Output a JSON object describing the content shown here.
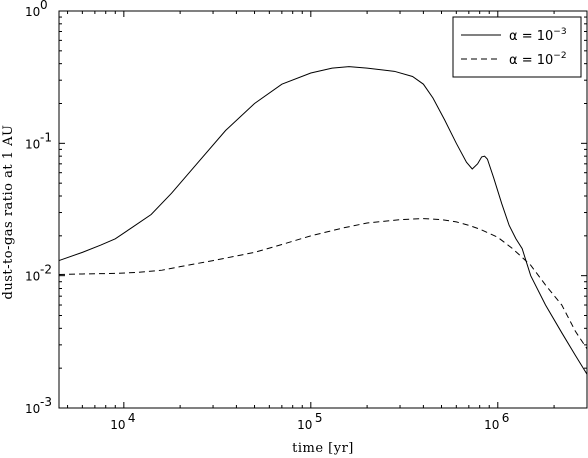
{
  "chart_data": {
    "type": "line",
    "title": "",
    "xlabel": "time [yr]",
    "ylabel": "dust-to-gas ratio at 1 AU",
    "xscale": "log",
    "yscale": "log",
    "xlim": [
      4500,
      3000000
    ],
    "ylim": [
      0.001,
      1
    ],
    "grid": false,
    "legend_position": "top-right",
    "x_ticks": [
      {
        "value": 10000,
        "base": "10",
        "exp": "4"
      },
      {
        "value": 100000,
        "base": "10",
        "exp": "5"
      },
      {
        "value": 1000000,
        "base": "10",
        "exp": "6"
      }
    ],
    "y_ticks": [
      {
        "value": 0.001,
        "base": "10",
        "exp": "-3"
      },
      {
        "value": 0.01,
        "base": "10",
        "exp": "-2"
      },
      {
        "value": 0.1,
        "base": "10",
        "exp": "-1"
      },
      {
        "value": 1,
        "base": "10",
        "exp": "0"
      }
    ],
    "series": [
      {
        "name": "α = 10⁻³",
        "legend_prefix": "α = 10",
        "legend_exp": "−3",
        "style": "solid",
        "color": "#000000",
        "points": [
          [
            4500,
            0.013
          ],
          [
            6000,
            0.015
          ],
          [
            7500,
            0.017
          ],
          [
            9000,
            0.019
          ],
          [
            11000,
            0.023
          ],
          [
            14000,
            0.029
          ],
          [
            18000,
            0.042
          ],
          [
            25000,
            0.072
          ],
          [
            35000,
            0.125
          ],
          [
            50000,
            0.2
          ],
          [
            70000,
            0.28
          ],
          [
            100000,
            0.34
          ],
          [
            130000,
            0.37
          ],
          [
            160000,
            0.38
          ],
          [
            200000,
            0.37
          ],
          [
            280000,
            0.35
          ],
          [
            350000,
            0.32
          ],
          [
            400000,
            0.28
          ],
          [
            450000,
            0.22
          ],
          [
            520000,
            0.15
          ],
          [
            600000,
            0.1
          ],
          [
            680000,
            0.072
          ],
          [
            730000,
            0.064
          ],
          [
            780000,
            0.07
          ],
          [
            820000,
            0.079
          ],
          [
            850000,
            0.08
          ],
          [
            880000,
            0.076
          ],
          [
            950000,
            0.055
          ],
          [
            1050000,
            0.035
          ],
          [
            1150000,
            0.024
          ],
          [
            1250000,
            0.019
          ],
          [
            1350000,
            0.016
          ],
          [
            1500000,
            0.01
          ],
          [
            1800000,
            0.006
          ],
          [
            2200000,
            0.0037
          ],
          [
            2600000,
            0.0025
          ],
          [
            3000000,
            0.0018
          ]
        ]
      },
      {
        "name": "α = 10⁻²",
        "legend_prefix": "α = 10",
        "legend_exp": "−2",
        "style": "dashed",
        "color": "#000000",
        "points": [
          [
            4500,
            0.0102
          ],
          [
            6000,
            0.0103
          ],
          [
            9000,
            0.0104
          ],
          [
            12000,
            0.0106
          ],
          [
            16000,
            0.011
          ],
          [
            20000,
            0.0117
          ],
          [
            30000,
            0.013
          ],
          [
            50000,
            0.015
          ],
          [
            70000,
            0.0172
          ],
          [
            100000,
            0.02
          ],
          [
            150000,
            0.023
          ],
          [
            200000,
            0.025
          ],
          [
            300000,
            0.0265
          ],
          [
            400000,
            0.027
          ],
          [
            500000,
            0.0265
          ],
          [
            600000,
            0.0255
          ],
          [
            700000,
            0.024
          ],
          [
            800000,
            0.0225
          ],
          [
            1000000,
            0.0195
          ],
          [
            1200000,
            0.016
          ],
          [
            1500000,
            0.012
          ],
          [
            1800000,
            0.0085
          ],
          [
            2200000,
            0.006
          ],
          [
            2600000,
            0.0038
          ],
          [
            3000000,
            0.0028
          ]
        ]
      }
    ]
  }
}
